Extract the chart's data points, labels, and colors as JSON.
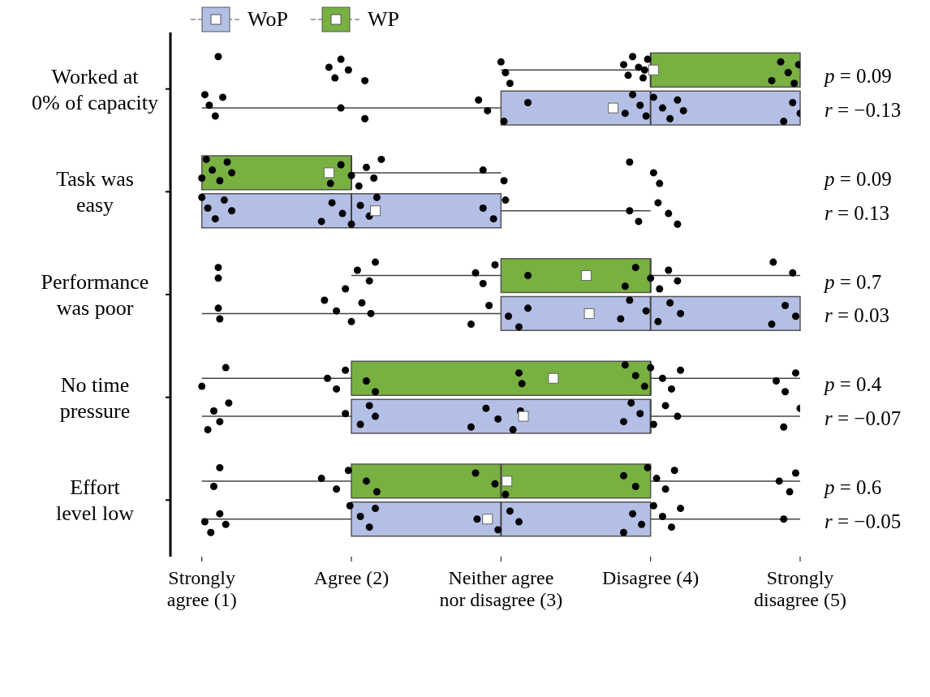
{
  "chart_data": {
    "type": "box",
    "orientation": "horizontal",
    "categories": [
      "Worked at\n0% of capacity",
      "Task was\neasy",
      "Performance\nwas poor",
      "No time\npressure",
      "Effort\nlevel low"
    ],
    "xlim": [
      0.79,
      5
    ],
    "xticks": [
      {
        "value": 1,
        "label": "Strongly\nagree (1)"
      },
      {
        "value": 2,
        "label": "Agree (2)"
      },
      {
        "value": 3,
        "label": "Neither agree\nnor disagree (3)"
      },
      {
        "value": 4,
        "label": "Disagree (4)"
      },
      {
        "value": 5,
        "label": "Strongly\ndisagree (5)"
      }
    ],
    "legend": "top left",
    "annotations": [
      "p = 0.09",
      "r = −0.13",
      "p = 0.09",
      "r = 0.13",
      "p = 0.7",
      "r = 0.03",
      "p = 0.4",
      "r = −0.07",
      "p = 0.6",
      "r = −0.05"
    ],
    "series": [
      {
        "type": "box",
        "name": "WoP",
        "color": "#b4bfe6",
        "boxes": [
          {
            "low": 1,
            "q1": 3,
            "median": 4,
            "q3": 5,
            "high": 5,
            "mean": 3.75
          },
          {
            "low": 1,
            "q1": 1,
            "median": 2,
            "q3": 3,
            "high": 4,
            "mean": 2.16
          },
          {
            "low": 1,
            "q1": 3,
            "median": 4,
            "q3": 5,
            "high": 5,
            "mean": 3.59
          },
          {
            "low": 1,
            "q1": 2,
            "median": 4,
            "q3": 4,
            "high": 5,
            "mean": 3.15
          },
          {
            "low": 1,
            "q1": 2,
            "median": 3,
            "q3": 4,
            "high": 5,
            "mean": 2.91
          }
        ]
      },
      {
        "type": "box",
        "name": "WP",
        "color": "#78b041",
        "boxes": [
          {
            "low": 3,
            "q1": 4,
            "median": 4,
            "q3": 5,
            "high": 5,
            "mean": 4.02
          },
          {
            "low": 1,
            "q1": 1,
            "median": 2,
            "q3": 2,
            "high": 3,
            "mean": 1.85
          },
          {
            "low": 2,
            "q1": 3,
            "median": 4,
            "q3": 4,
            "high": 5,
            "mean": 3.57
          },
          {
            "low": 1,
            "q1": 2,
            "median": 4,
            "q3": 4,
            "high": 5,
            "mean": 3.35
          },
          {
            "low": 1,
            "q1": 2,
            "median": 3,
            "q3": 4,
            "high": 5,
            "mean": 3.04
          }
        ]
      },
      {
        "type": "scatter",
        "color": "#000000",
        "x": [
          "Worked at\n0% of capacity",
          "Worked at\n0% of capacity",
          "Worked at\n0% of capacity",
          "Worked at\n0% of capacity",
          "Worked at\n0% of capacity",
          "Worked at\n0% of capacity",
          "Worked at\n0% of capacity",
          "Worked at\n0% of capacity",
          "Worked at\n0% of capacity",
          "Worked at\n0% of capacity",
          "Worked at\n0% of capacity",
          "Worked at\n0% of capacity",
          "Worked at\n0% of capacity",
          "Worked at\n0% of capacity",
          "Worked at\n0% of capacity",
          "Worked at\n0% of capacity",
          "Worked at\n0% of capacity",
          "Worked at\n0% of capacity",
          "Worked at\n0% of capacity",
          "Worked at\n0% of capacity",
          "Worked at\n0% of capacity",
          "Worked at\n0% of capacity",
          "Task was\neasy",
          "Task was\neasy",
          "Task was\neasy",
          "Task was\neasy",
          "Task was\neasy",
          "Task was\neasy",
          "Task was\neasy",
          "Task was\neasy",
          "Task was\neasy",
          "Task was\neasy",
          "Task was\neasy",
          "Task was\neasy",
          "Task was\neasy",
          "Task was\neasy",
          "Task was\neasy",
          "Task was\neasy",
          "Task was\neasy",
          "Task was\neasy",
          "Task was\neasy",
          "Task was\neasy",
          "Performance\nwas poor",
          "Performance\nwas poor",
          "Performance\nwas poor",
          "Performance\nwas poor",
          "Performance\nwas poor",
          "Performance\nwas poor",
          "Performance\nwas poor",
          "Performance\nwas poor",
          "Performance\nwas poor",
          "Performance\nwas poor",
          "Performance\nwas poor",
          "Performance\nwas poor",
          "Performance\nwas poor",
          "Performance\nwas poor",
          "Performance\nwas poor",
          "Performance\nwas poor",
          "Performance\nwas poor",
          "Performance\nwas poor",
          "Performance\nwas poor",
          "Performance\nwas poor",
          "Performance\nwas poor",
          "No time\npressure",
          "No time\npressure",
          "No time\npressure",
          "No time\npressure",
          "No time\npressure",
          "No time\npressure",
          "No time\npressure",
          "No time\npressure",
          "No time\npressure",
          "No time\npressure",
          "No time\npressure",
          "No time\npressure",
          "No time\npressure",
          "No time\npressure",
          "No time\npressure",
          "No time\npressure",
          "No time\npressure",
          "No time\npressure",
          "No time\npressure",
          "No time\npressure",
          "No time\npressure",
          "Effort\nlevel low",
          "Effort\nlevel low",
          "Effort\nlevel low",
          "Effort\nlevel low",
          "Effort\nlevel low",
          "Effort\nlevel low",
          "Effort\nlevel low",
          "Effort\nlevel low",
          "Effort\nlevel low",
          "Effort\nlevel low",
          "Effort\nlevel low",
          "Effort\nlevel low",
          "Effort\nlevel low",
          "Effort\nlevel low",
          "Effort\nlevel low",
          "Effort\nlevel low",
          "Effort\nlevel low",
          "Effort\nlevel low",
          "Effort\nlevel low",
          "Effort\nlevel low"
        ],
        "values": [
          1.02,
          1.05,
          1.09,
          1.14,
          1.93,
          2.09,
          2.85,
          2.91,
          3.02,
          3.18,
          3.83,
          3.88,
          3.93,
          3.97,
          4.02,
          4.08,
          4.13,
          4.18,
          4.22,
          4.89,
          4.95,
          5.0,
          1.0,
          1.04,
          1.09,
          1.15,
          1.2,
          1.8,
          1.87,
          1.94,
          2.0,
          2.06,
          2.12,
          2.17,
          2.88,
          2.95,
          3.03,
          3.86,
          3.92,
          4.05,
          4.12,
          4.18,
          1.11,
          1.12,
          1.82,
          1.9,
          2.0,
          2.07,
          2.13,
          2.8,
          2.92,
          3.05,
          3.12,
          3.18,
          3.8,
          3.86,
          3.97,
          4.05,
          4.13,
          4.2,
          4.81,
          4.9,
          4.97,
          1.04,
          1.08,
          1.12,
          1.18,
          1.96,
          2.06,
          2.12,
          2.16,
          2.8,
          2.9,
          2.98,
          3.08,
          3.13,
          3.82,
          3.87,
          3.93,
          4.02,
          4.1,
          4.18,
          4.89,
          5.0,
          1.02,
          1.06,
          1.12,
          1.16,
          1.99,
          2.06,
          2.12,
          2.16,
          2.84,
          2.98,
          3.06,
          3.12,
          3.82,
          3.88,
          3.94,
          4.02,
          4.08,
          4.14,
          4.2,
          4.89
        ]
      },
      {
        "type": "scatter",
        "color": "#000000",
        "x": [
          "Worked at\n0% of capacity",
          "Worked at\n0% of capacity",
          "Worked at\n0% of capacity",
          "Worked at\n0% of capacity",
          "Worked at\n0% of capacity",
          "Worked at\n0% of capacity",
          "Worked at\n0% of capacity",
          "Worked at\n0% of capacity",
          "Worked at\n0% of capacity",
          "Worked at\n0% of capacity",
          "Worked at\n0% of capacity",
          "Worked at\n0% of capacity",
          "Worked at\n0% of capacity",
          "Worked at\n0% of capacity",
          "Worked at\n0% of capacity",
          "Worked at\n0% of capacity",
          "Worked at\n0% of capacity",
          "Worked at\n0% of capacity",
          "Worked at\n0% of capacity",
          "Worked at\n0% of capacity",
          "Worked at\n0% of capacity",
          "Task was\neasy",
          "Task was\neasy",
          "Task was\neasy",
          "Task was\neasy",
          "Task was\neasy",
          "Task was\neasy",
          "Task was\neasy",
          "Task was\neasy",
          "Task was\neasy",
          "Task was\neasy",
          "Task was\neasy",
          "Task was\neasy",
          "Task was\neasy",
          "Task was\neasy",
          "Task was\neasy",
          "Task was\neasy",
          "Task was\neasy",
          "Task was\neasy",
          "Performance\nwas poor",
          "Performance\nwas poor",
          "Performance\nwas poor",
          "Performance\nwas poor",
          "Performance\nwas poor",
          "Performance\nwas poor",
          "Performance\nwas poor",
          "Performance\nwas poor",
          "Performance\nwas poor",
          "Performance\nwas poor",
          "Performance\nwas poor",
          "Performance\nwas poor",
          "Performance\nwas poor",
          "Performance\nwas poor",
          "Performance\nwas poor",
          "Performance\nwas poor",
          "Performance\nwas poor",
          "Performance\nwas poor",
          "No time\npressure",
          "No time\npressure",
          "No time\npressure",
          "No time\npressure",
          "No time\npressure",
          "No time\npressure",
          "No time\npressure",
          "No time\npressure",
          "No time\npressure",
          "No time\npressure",
          "No time\npressure",
          "No time\npressure",
          "No time\npressure",
          "No time\npressure",
          "No time\npressure",
          "No time\npressure",
          "No time\npressure",
          "No time\npressure",
          "No time\npressure",
          "Effort\nlevel low",
          "Effort\nlevel low",
          "Effort\nlevel low",
          "Effort\nlevel low",
          "Effort\nlevel low",
          "Effort\nlevel low",
          "Effort\nlevel low",
          "Effort\nlevel low",
          "Effort\nlevel low",
          "Effort\nlevel low",
          "Effort\nlevel low",
          "Effort\nlevel low",
          "Effort\nlevel low",
          "Effort\nlevel low",
          "Effort\nlevel low",
          "Effort\nlevel low",
          "Effort\nlevel low",
          "Effort\nlevel low",
          "Effort\nlevel low"
        ],
        "values": [
          1.11,
          1.85,
          1.89,
          1.93,
          1.98,
          2.09,
          3.0,
          3.03,
          3.06,
          3.82,
          3.85,
          3.88,
          3.92,
          3.95,
          3.98,
          3.96,
          4.81,
          4.87,
          4.92,
          4.96,
          4.99,
          1.0,
          1.03,
          1.07,
          1.12,
          1.17,
          1.2,
          1.86,
          1.93,
          2.0,
          2.05,
          2.1,
          2.15,
          2.2,
          2.88,
          3.02,
          3.86,
          4.02,
          4.06,
          1.11,
          1.11,
          1.96,
          2.04,
          2.12,
          2.16,
          2.83,
          2.88,
          2.96,
          3.18,
          3.83,
          3.9,
          4.0,
          4.06,
          4.12,
          4.18,
          4.82,
          4.95,
          1.0,
          1.16,
          1.84,
          1.9,
          1.96,
          2.1,
          2.16,
          3.12,
          3.14,
          3.83,
          3.9,
          3.96,
          4.0,
          4.08,
          4.14,
          4.2,
          4.84,
          4.9,
          4.97,
          1.08,
          1.12,
          1.8,
          1.9,
          1.98,
          2.1,
          2.17,
          2.83,
          2.96,
          3.03,
          3.82,
          3.9,
          3.98,
          4.04,
          4.1,
          4.16,
          4.86,
          4.93,
          4.97
        ]
      }
    ]
  }
}
